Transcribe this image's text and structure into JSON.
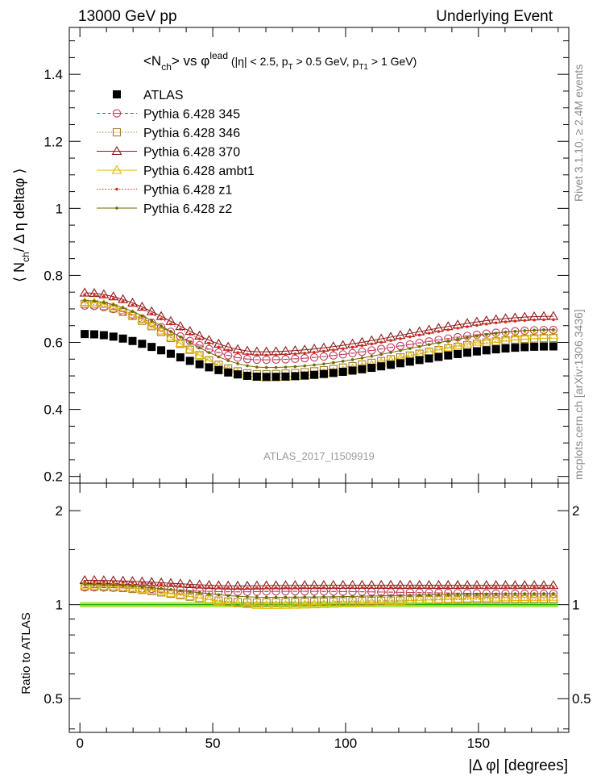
{
  "header": {
    "energy": "13000 GeV pp",
    "process": "Underlying Event"
  },
  "chart_data": [
    {
      "type": "scatter",
      "title_main": "<N",
      "title_sub1": "ch",
      "title_mid": "> vs φ",
      "title_sup": "lead",
      "title_cuts_1": " (|η| < 2.5, p",
      "title_cuts_sub1": "T",
      "title_cuts_2": " > 0.5 GeV, p",
      "title_cuts_sub2": "T1",
      "title_cuts_3": " > 1 GeV)",
      "ylabel_prefix": "⟨ N",
      "ylabel_sub": "ch",
      "ylabel_suffix": "/ Δ η deltaφ ⟩",
      "xlabel": "|Δ φ| [degrees]",
      "xlim": [
        -4,
        184
      ],
      "ylim": [
        0.18,
        1.54
      ],
      "xticks": [
        0,
        50,
        100,
        150
      ],
      "yticks": [
        0.2,
        0.4,
        0.6,
        0.8,
        1,
        1.2,
        1.4
      ],
      "ytick_labels": [
        "0.2",
        "0.4",
        "0.6",
        "0.8",
        "1",
        "1.2",
        "1.4"
      ],
      "x_bin_centers_start": 1.8,
      "x_bin_width": 3.6,
      "x_bin_count": 50,
      "watermark": "ATLAS_2017_I1509919",
      "series": [
        {
          "name": "ATLAS",
          "color": "#000000",
          "marker": "square",
          "shape": {
            "start": 0.625,
            "min": 0.497,
            "xmin": 70,
            "end": 0.588
          }
        },
        {
          "name": "Pythia 6.428 345",
          "color": "#c3395a",
          "marker": "circle-open",
          "line": "dashed",
          "shape": {
            "start": 0.71,
            "min": 0.548,
            "xmin": 68,
            "end": 0.637
          }
        },
        {
          "name": "Pythia 6.428 346",
          "color": "#a57c2d",
          "marker": "square-open",
          "line": "dotted",
          "shape": {
            "start": 0.715,
            "min": 0.505,
            "xmin": 68,
            "end": 0.613
          }
        },
        {
          "name": "Pythia 6.428 370",
          "color": "#8b1a1a",
          "marker": "triangle-open",
          "line": "solid",
          "shape": {
            "start": 0.748,
            "min": 0.572,
            "xmin": 68,
            "end": 0.678
          }
        },
        {
          "name": "Pythia 6.428 ambt1",
          "color": "#e5b800",
          "marker": "triangle-open",
          "line": "solid",
          "shape": {
            "start": 0.72,
            "min": 0.495,
            "xmin": 70,
            "end": 0.622
          }
        },
        {
          "name": "Pythia 6.428 z1",
          "color": "#d42a1a",
          "marker": "dot",
          "line": "dotted",
          "shape": {
            "start": 0.742,
            "min": 0.562,
            "xmin": 68,
            "end": 0.668
          }
        },
        {
          "name": "Pythia 6.428 z2",
          "color": "#6b6b00",
          "marker": "dot",
          "line": "solid",
          "shape": {
            "start": 0.725,
            "min": 0.525,
            "xmin": 70,
            "end": 0.638
          }
        }
      ]
    },
    {
      "type": "scatter",
      "ylabel": "Ratio to ATLAS",
      "xlim": [
        -4,
        184
      ],
      "ylim": [
        0.39,
        2.45
      ],
      "log_y": true,
      "yticks": [
        0.5,
        1,
        2
      ],
      "ytick_labels": [
        "0.5",
        "1",
        "2"
      ],
      "xticks": [
        0,
        50,
        100,
        150
      ],
      "xtick_labels": [
        "0",
        "50",
        "100",
        "150"
      ],
      "reference_band_color": "#a6e22e",
      "reference_line_color": "#00aa00"
    }
  ],
  "side_labels": {
    "rivet": "Rivet 3.1.10, ≥ 2.4M events",
    "source": "mcplots.cern.ch [arXiv:1306.3436]"
  }
}
